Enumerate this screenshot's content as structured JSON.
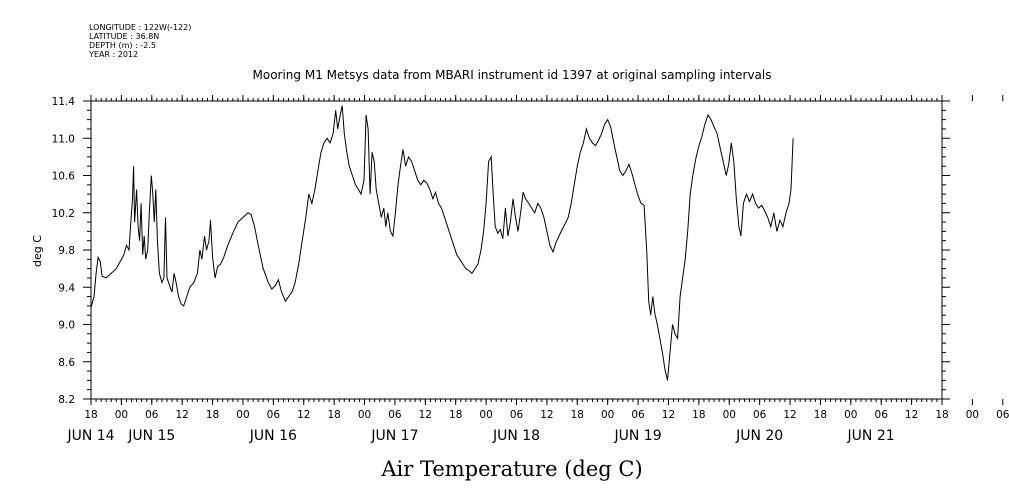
{
  "header": {
    "meta_lines": [
      "LONGITUDE : 122W(-122)",
      "LATITUDE : 36.8N",
      "DEPTH (m) : -2.5",
      "YEAR : 2012"
    ]
  },
  "chart_data": {
    "type": "line",
    "title": "Mooring M1 Metsys data from MBARI instrument id 1397 at original sampling intervals",
    "xlabel": "Air Temperature (deg C)",
    "ylabel": "deg C",
    "ylim": [
      8.2,
      11.4
    ],
    "yticks": [
      "8.2",
      "8.6",
      "9.0",
      "9.4",
      "9.8",
      "10.2",
      "10.6",
      "11.0",
      "11.4"
    ],
    "x_unit": "hours since Jun 14 2012 18:00",
    "xlim": [
      0,
      168
    ],
    "xtick_labels": [
      "18",
      "00",
      "06",
      "12",
      "18",
      "00",
      "06",
      "12",
      "18",
      "00",
      "06",
      "12",
      "18",
      "00",
      "06",
      "12",
      "18",
      "00",
      "06",
      "12",
      "18",
      "00",
      "06",
      "12",
      "18",
      "00",
      "06",
      "12",
      "18",
      "00",
      "06",
      "12",
      "18"
    ],
    "date_labels": [
      {
        "text": "JUN 14",
        "x": 0
      },
      {
        "text": "JUN 15",
        "x": 12
      },
      {
        "text": "JUN 16",
        "x": 36
      },
      {
        "text": "JUN 17",
        "x": 60
      },
      {
        "text": "JUN 18",
        "x": 84
      },
      {
        "text": "JUN 19",
        "x": 108
      },
      {
        "text": "JUN 20",
        "x": 132
      },
      {
        "text": "JUN 21",
        "x": 154
      }
    ],
    "grid": false,
    "series": [
      {
        "color": "#000000",
        "points": [
          [
            0,
            9.18
          ],
          [
            0.6,
            9.3
          ],
          [
            1,
            9.55
          ],
          [
            1.4,
            9.72
          ],
          [
            1.8,
            9.68
          ],
          [
            2.2,
            9.52
          ],
          [
            3,
            9.5
          ],
          [
            4,
            9.55
          ],
          [
            5,
            9.6
          ],
          [
            5.8,
            9.68
          ],
          [
            6.5,
            9.75
          ],
          [
            7,
            9.85
          ],
          [
            7.5,
            9.8
          ],
          [
            7.8,
            10.05
          ],
          [
            8.2,
            10.35
          ],
          [
            8.4,
            10.7
          ],
          [
            8.6,
            10.1
          ],
          [
            9,
            10.45
          ],
          [
            9.3,
            10.05
          ],
          [
            9.6,
            9.9
          ],
          [
            9.9,
            10.3
          ],
          [
            10.2,
            9.75
          ],
          [
            10.5,
            9.95
          ],
          [
            10.8,
            9.7
          ],
          [
            11.2,
            9.8
          ],
          [
            11.5,
            10.2
          ],
          [
            11.9,
            10.6
          ],
          [
            12.2,
            10.4
          ],
          [
            12.5,
            10.1
          ],
          [
            12.8,
            10.45
          ],
          [
            13.1,
            9.9
          ],
          [
            13.5,
            9.55
          ],
          [
            14,
            9.45
          ],
          [
            14.4,
            9.5
          ],
          [
            14.7,
            10.15
          ],
          [
            15,
            9.5
          ],
          [
            15.5,
            9.42
          ],
          [
            16,
            9.35
          ],
          [
            16.4,
            9.55
          ],
          [
            16.8,
            9.45
          ],
          [
            17.3,
            9.3
          ],
          [
            17.8,
            9.22
          ],
          [
            18.3,
            9.2
          ],
          [
            18.8,
            9.28
          ],
          [
            19.5,
            9.4
          ],
          [
            20.3,
            9.45
          ],
          [
            21,
            9.55
          ],
          [
            21.5,
            9.8
          ],
          [
            21.9,
            9.7
          ],
          [
            22.4,
            9.95
          ],
          [
            22.8,
            9.8
          ],
          [
            23.3,
            9.9
          ],
          [
            23.6,
            10.12
          ],
          [
            24,
            9.72
          ],
          [
            24.5,
            9.5
          ],
          [
            25,
            9.62
          ],
          [
            25.6,
            9.65
          ],
          [
            26.2,
            9.72
          ],
          [
            27,
            9.85
          ],
          [
            28,
            9.98
          ],
          [
            29,
            10.1
          ],
          [
            30,
            10.15
          ],
          [
            31,
            10.2
          ],
          [
            31.6,
            10.18
          ],
          [
            32.3,
            10.05
          ],
          [
            33,
            9.85
          ],
          [
            34,
            9.6
          ],
          [
            35,
            9.45
          ],
          [
            35.7,
            9.38
          ],
          [
            36.4,
            9.42
          ],
          [
            37,
            9.48
          ],
          [
            37.6,
            9.35
          ],
          [
            38.4,
            9.25
          ],
          [
            39,
            9.3
          ],
          [
            39.7,
            9.35
          ],
          [
            40.3,
            9.45
          ],
          [
            41,
            9.65
          ],
          [
            41.7,
            9.9
          ],
          [
            42.4,
            10.15
          ],
          [
            43,
            10.4
          ],
          [
            43.6,
            10.3
          ],
          [
            44.2,
            10.45
          ],
          [
            44.8,
            10.65
          ],
          [
            45.4,
            10.85
          ],
          [
            46,
            10.95
          ],
          [
            46.6,
            11.0
          ],
          [
            47.2,
            10.95
          ],
          [
            47.8,
            11.05
          ],
          [
            48.3,
            11.3
          ],
          [
            48.7,
            11.1
          ],
          [
            49.2,
            11.25
          ],
          [
            49.6,
            11.35
          ],
          [
            50,
            11.05
          ],
          [
            50.5,
            10.85
          ],
          [
            51,
            10.7
          ],
          [
            51.6,
            10.6
          ],
          [
            52.2,
            10.5
          ],
          [
            52.8,
            10.45
          ],
          [
            53.3,
            10.4
          ],
          [
            53.9,
            10.55
          ],
          [
            54.3,
            11.25
          ],
          [
            54.7,
            11.1
          ],
          [
            55.1,
            10.4
          ],
          [
            55.5,
            10.85
          ],
          [
            55.9,
            10.75
          ],
          [
            56.3,
            10.45
          ],
          [
            56.8,
            10.3
          ],
          [
            57.3,
            10.15
          ],
          [
            57.8,
            10.25
          ],
          [
            58.2,
            10.05
          ],
          [
            58.6,
            10.2
          ],
          [
            59.1,
            10.0
          ],
          [
            59.6,
            9.95
          ],
          [
            60.1,
            10.2
          ],
          [
            60.6,
            10.5
          ],
          [
            61.1,
            10.7
          ],
          [
            61.6,
            10.88
          ],
          [
            62.1,
            10.7
          ],
          [
            62.7,
            10.8
          ],
          [
            63.3,
            10.75
          ],
          [
            63.9,
            10.65
          ],
          [
            64.5,
            10.55
          ],
          [
            65.1,
            10.5
          ],
          [
            65.7,
            10.55
          ],
          [
            66.3,
            10.52
          ],
          [
            66.9,
            10.45
          ],
          [
            67.5,
            10.35
          ],
          [
            68,
            10.42
          ],
          [
            68.6,
            10.3
          ],
          [
            69.2,
            10.25
          ],
          [
            69.8,
            10.15
          ],
          [
            70.4,
            10.05
          ],
          [
            71,
            9.95
          ],
          [
            71.6,
            9.85
          ],
          [
            72.2,
            9.75
          ],
          [
            72.8,
            9.7
          ],
          [
            73.4,
            9.65
          ],
          [
            74,
            9.6
          ],
          [
            74.6,
            9.58
          ],
          [
            75.2,
            9.55
          ],
          [
            75.8,
            9.6
          ],
          [
            76.4,
            9.65
          ],
          [
            77,
            9.8
          ],
          [
            77.5,
            10.0
          ],
          [
            78,
            10.3
          ],
          [
            78.5,
            10.75
          ],
          [
            79,
            10.8
          ],
          [
            79.4,
            10.4
          ],
          [
            79.8,
            10.05
          ],
          [
            80.3,
            9.98
          ],
          [
            80.8,
            10.02
          ],
          [
            81.3,
            9.92
          ],
          [
            81.8,
            10.25
          ],
          [
            82.3,
            9.95
          ],
          [
            82.8,
            10.1
          ],
          [
            83.3,
            10.35
          ],
          [
            83.8,
            10.15
          ],
          [
            84.3,
            10.0
          ],
          [
            84.8,
            10.2
          ],
          [
            85.3,
            10.42
          ],
          [
            85.8,
            10.35
          ],
          [
            86.4,
            10.3
          ],
          [
            87,
            10.25
          ],
          [
            87.6,
            10.2
          ],
          [
            88.2,
            10.3
          ],
          [
            88.8,
            10.25
          ],
          [
            89.4,
            10.15
          ],
          [
            90,
            10.0
          ],
          [
            90.6,
            9.85
          ],
          [
            91.2,
            9.78
          ],
          [
            91.8,
            9.88
          ],
          [
            92.4,
            9.95
          ],
          [
            93,
            10.02
          ],
          [
            93.6,
            10.08
          ],
          [
            94.2,
            10.15
          ],
          [
            94.8,
            10.3
          ],
          [
            95.4,
            10.5
          ],
          [
            96,
            10.7
          ],
          [
            96.6,
            10.85
          ],
          [
            97.2,
            10.95
          ],
          [
            97.8,
            11.1
          ],
          [
            98.4,
            11.0
          ],
          [
            99,
            10.95
          ],
          [
            99.6,
            10.92
          ],
          [
            100.2,
            10.98
          ],
          [
            100.8,
            11.05
          ],
          [
            101.4,
            11.15
          ],
          [
            102,
            11.2
          ],
          [
            102.6,
            11.12
          ],
          [
            103.2,
            10.95
          ],
          [
            103.8,
            10.8
          ],
          [
            104.4,
            10.65
          ],
          [
            105,
            10.6
          ],
          [
            105.6,
            10.65
          ],
          [
            106.2,
            10.72
          ],
          [
            106.8,
            10.62
          ],
          [
            107.4,
            10.5
          ],
          [
            108,
            10.38
          ],
          [
            108.6,
            10.3
          ],
          [
            109.2,
            10.28
          ],
          [
            109.7,
            9.8
          ],
          [
            110.1,
            9.25
          ],
          [
            110.5,
            9.1
          ],
          [
            110.9,
            9.3
          ],
          [
            111.3,
            9.12
          ],
          [
            111.8,
            9.0
          ],
          [
            112.3,
            8.85
          ],
          [
            112.8,
            8.7
          ],
          [
            113.3,
            8.52
          ],
          [
            113.8,
            8.4
          ],
          [
            114.3,
            8.7
          ],
          [
            114.8,
            9.0
          ],
          [
            115.3,
            8.9
          ],
          [
            115.8,
            8.85
          ],
          [
            116.3,
            9.3
          ],
          [
            116.8,
            9.5
          ],
          [
            117.3,
            9.7
          ],
          [
            117.8,
            10.0
          ],
          [
            118.3,
            10.4
          ],
          [
            118.8,
            10.6
          ],
          [
            119.4,
            10.78
          ],
          [
            120,
            10.92
          ],
          [
            120.6,
            11.02
          ],
          [
            121.2,
            11.15
          ],
          [
            121.8,
            11.25
          ],
          [
            122.4,
            11.2
          ],
          [
            123,
            11.12
          ],
          [
            123.6,
            11.05
          ],
          [
            124.2,
            10.9
          ],
          [
            124.8,
            10.75
          ],
          [
            125.4,
            10.6
          ],
          [
            125.9,
            10.72
          ],
          [
            126.4,
            10.95
          ],
          [
            126.9,
            10.75
          ],
          [
            127.4,
            10.35
          ],
          [
            127.9,
            10.05
          ],
          [
            128.3,
            9.95
          ],
          [
            128.8,
            10.3
          ],
          [
            129.4,
            10.4
          ],
          [
            130,
            10.32
          ],
          [
            130.6,
            10.4
          ],
          [
            131.2,
            10.3
          ],
          [
            131.8,
            10.25
          ],
          [
            132.4,
            10.28
          ],
          [
            133,
            10.22
          ],
          [
            133.6,
            10.15
          ],
          [
            134.2,
            10.05
          ],
          [
            134.8,
            10.2
          ],
          [
            135.4,
            10.0
          ],
          [
            136,
            10.12
          ],
          [
            136.6,
            10.05
          ],
          [
            137.2,
            10.2
          ],
          [
            137.8,
            10.3
          ],
          [
            138.2,
            10.45
          ],
          [
            138.6,
            11.0
          ]
        ]
      }
    ]
  }
}
